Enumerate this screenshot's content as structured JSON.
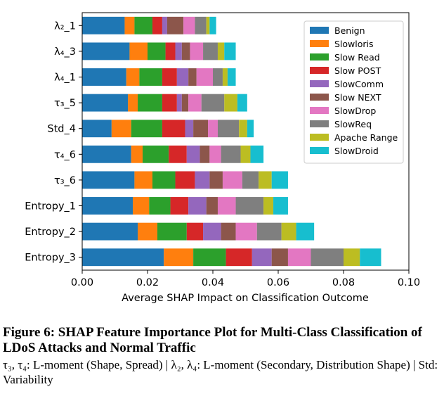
{
  "chart_data": {
    "type": "bar",
    "orientation": "horizontal",
    "stacked": true,
    "categories": [
      "λ₂_1",
      "λ₄_3",
      "λ₄_1",
      "τ₃_5",
      "Std_4",
      "τ₄_6",
      "τ₃_6",
      "Entropy_1",
      "Entropy_2",
      "Entropy_3"
    ],
    "series": [
      {
        "name": "Benign",
        "color": "#1f77b4",
        "values": [
          0.013,
          0.0145,
          0.0135,
          0.014,
          0.009,
          0.015,
          0.016,
          0.0155,
          0.017,
          0.025
        ]
      },
      {
        "name": "Slowloris",
        "color": "#ff7f0e",
        "values": [
          0.003,
          0.0055,
          0.004,
          0.003,
          0.006,
          0.0035,
          0.0055,
          0.005,
          0.006,
          0.009
        ]
      },
      {
        "name": "Slow Read",
        "color": "#2ca02c",
        "values": [
          0.0055,
          0.0055,
          0.007,
          0.0075,
          0.0095,
          0.008,
          0.007,
          0.0065,
          0.009,
          0.01
        ]
      },
      {
        "name": "Slow POST",
        "color": "#d62728",
        "values": [
          0.003,
          0.003,
          0.0045,
          0.0045,
          0.007,
          0.0055,
          0.006,
          0.0055,
          0.005,
          0.008
        ]
      },
      {
        "name": "SlowComm",
        "color": "#9467bd",
        "values": [
          0.0015,
          0.002,
          0.0035,
          0.0015,
          0.0025,
          0.004,
          0.0045,
          0.0055,
          0.0055,
          0.006
        ]
      },
      {
        "name": "Slow NEXT",
        "color": "#8c564b",
        "values": [
          0.005,
          0.0025,
          0.0025,
          0.002,
          0.0045,
          0.003,
          0.004,
          0.0035,
          0.0045,
          0.005
        ]
      },
      {
        "name": "SlowDrop",
        "color": "#e377c2",
        "values": [
          0.0035,
          0.004,
          0.005,
          0.004,
          0.003,
          0.0035,
          0.006,
          0.0055,
          0.0065,
          0.007
        ]
      },
      {
        "name": "SlowReq",
        "color": "#7f7f7f",
        "values": [
          0.0035,
          0.0045,
          0.003,
          0.007,
          0.0065,
          0.006,
          0.005,
          0.0085,
          0.0075,
          0.01
        ]
      },
      {
        "name": "Apache Range",
        "color": "#bcbd22",
        "values": [
          0.001,
          0.002,
          0.0015,
          0.004,
          0.0025,
          0.003,
          0.004,
          0.003,
          0.0045,
          0.005
        ]
      },
      {
        "name": "SlowDroid",
        "color": "#17becf",
        "values": [
          0.002,
          0.0035,
          0.0025,
          0.003,
          0.002,
          0.004,
          0.005,
          0.0045,
          0.0055,
          0.0065
        ]
      }
    ],
    "xlabel": "Average SHAP Impact on Classification Outcome",
    "ylabel": "",
    "xlim": [
      0,
      0.1
    ],
    "xticks": [
      0,
      0.02,
      0.04,
      0.06,
      0.08,
      0.1
    ],
    "xtick_labels": [
      "0.00",
      "0.02",
      "0.04",
      "0.06",
      "0.08",
      "0.10"
    ],
    "grid": false,
    "legend_position": "top-right"
  },
  "caption": {
    "title": "Figure 6: SHAP Feature Importance Plot for Multi-Class Classification of LDoS Attacks and Normal Traffic",
    "note": "τ₃, τ₄: L-moment (Shape, Spread) | λ₂, λ₄: L-moment (Secondary, Distribution Shape) | Std: Variability"
  }
}
